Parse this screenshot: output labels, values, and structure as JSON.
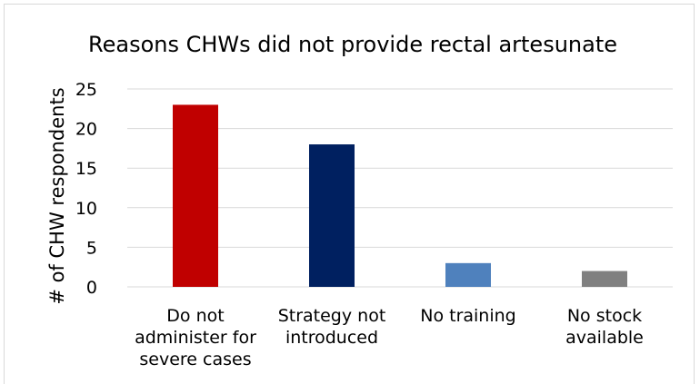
{
  "chart_data": {
    "type": "bar",
    "title": "Reasons CHWs did not provide rectal artesunate",
    "ylabel": "# of CHW respondents",
    "xlabel": "",
    "categories": [
      [
        "Do not",
        "administer for",
        "severe cases"
      ],
      [
        "Strategy not",
        "introduced"
      ],
      [
        "No training"
      ],
      [
        "No stock",
        "available"
      ]
    ],
    "values": [
      23,
      18,
      3,
      2
    ],
    "colors": [
      "#c00000",
      "#002060",
      "#4f81bd",
      "#808080"
    ],
    "ylim": [
      0,
      25
    ],
    "yticks": [
      0,
      5,
      10,
      15,
      20,
      25
    ],
    "grid": true,
    "legend": "none"
  }
}
